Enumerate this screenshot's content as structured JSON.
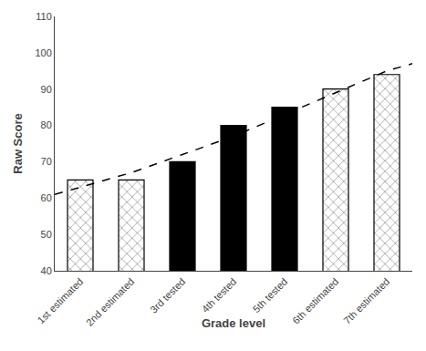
{
  "chart_data": {
    "type": "bar",
    "xlabel": "Grade level",
    "ylabel": "Raw Score",
    "categories": [
      "1st estimated",
      "2nd estimated",
      "3rd tested",
      "4th tested",
      "5th tested",
      "6th estimated",
      "7th estimated"
    ],
    "series": [
      {
        "type": "bar",
        "values": [
          65,
          65,
          70,
          80,
          85,
          90,
          94
        ],
        "colors": [
          "white",
          "white",
          "black",
          "black",
          "black",
          "white",
          "white"
        ]
      },
      {
        "type": "line",
        "x": [
          -0.5,
          0,
          1,
          2,
          3,
          4,
          5,
          6,
          6.5
        ],
        "values": [
          61,
          63,
          67,
          72,
          77,
          83,
          89,
          95,
          97
        ],
        "color": "black",
        "line_style": "dashed"
      }
    ],
    "ylim": [
      40,
      110
    ],
    "yticks": [
      40,
      50,
      60,
      70,
      80,
      90,
      100,
      110
    ],
    "grid": false
  }
}
